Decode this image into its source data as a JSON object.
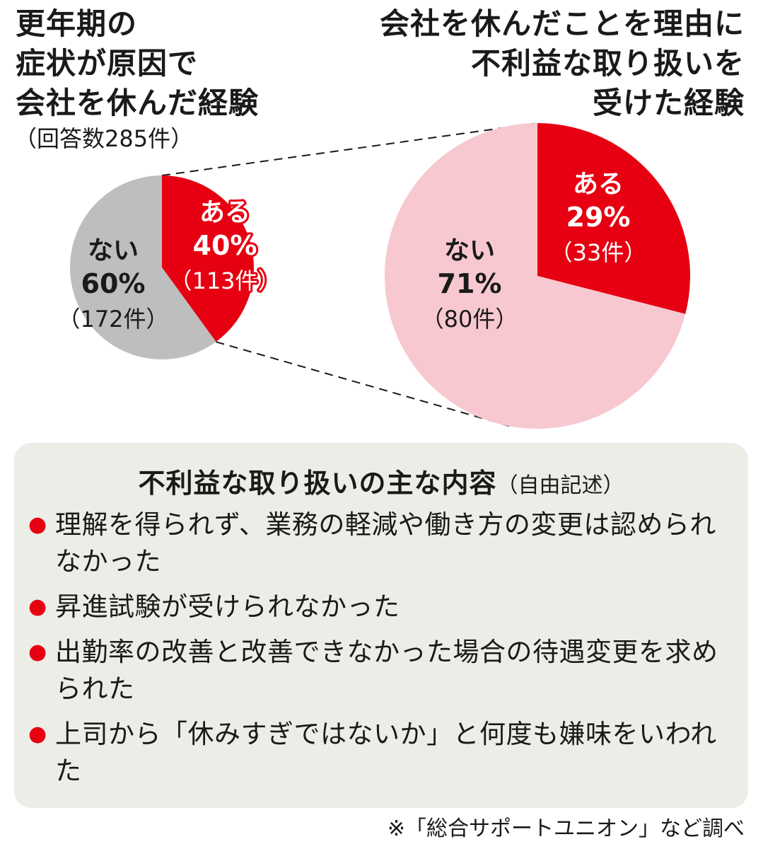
{
  "colors": {
    "red": "#e60012",
    "gray": "#bebebe",
    "pink": "#f8c8d0",
    "panel_bg": "#edede8",
    "text": "#1a1a1a"
  },
  "left_title": [
    "更年期の",
    "症状が原因で",
    "会社を休んだ経験"
  ],
  "left_count_note": "（回答数285件）",
  "right_title": [
    "会社を休んだことを理由に",
    "不利益な取り扱いを",
    "受けた経験"
  ],
  "chart_data": [
    {
      "type": "pie",
      "title": "更年期の症状が原因で会社を休んだ経験",
      "total_label": "（回答数285件）",
      "slices": [
        {
          "name": "ある",
          "percent": 40,
          "count": 113,
          "percent_label": "40%",
          "count_label": "（113件）",
          "color": "#e60012"
        },
        {
          "name": "ない",
          "percent": 60,
          "count": 172,
          "percent_label": "60%",
          "count_label": "（172件）",
          "color": "#bebebe"
        }
      ]
    },
    {
      "type": "pie",
      "title": "会社を休んだことを理由に不利益な取り扱いを受けた経験",
      "slices": [
        {
          "name": "ある",
          "percent": 29,
          "count": 33,
          "percent_label": "29%",
          "count_label": "（33件）",
          "color": "#e60012"
        },
        {
          "name": "ない",
          "percent": 71,
          "count": 80,
          "percent_label": "71%",
          "count_label": "（80件）",
          "color": "#f8c8d0"
        }
      ]
    }
  ],
  "panel": {
    "title": "不利益な取り扱いの主な内容",
    "subtitle": "（自由記述）",
    "bullet": "●",
    "items": [
      "理解を得られず、業務の軽減や働き方の変更は認められなかった",
      "昇進試験が受けられなかった",
      "出勤率の改善と改善できなかった場合の待遇変更を求められた",
      "上司から「休みすぎではないか」と何度も嫌味をいわれた"
    ]
  },
  "source": "※「総合サポートユニオン」など調べ"
}
